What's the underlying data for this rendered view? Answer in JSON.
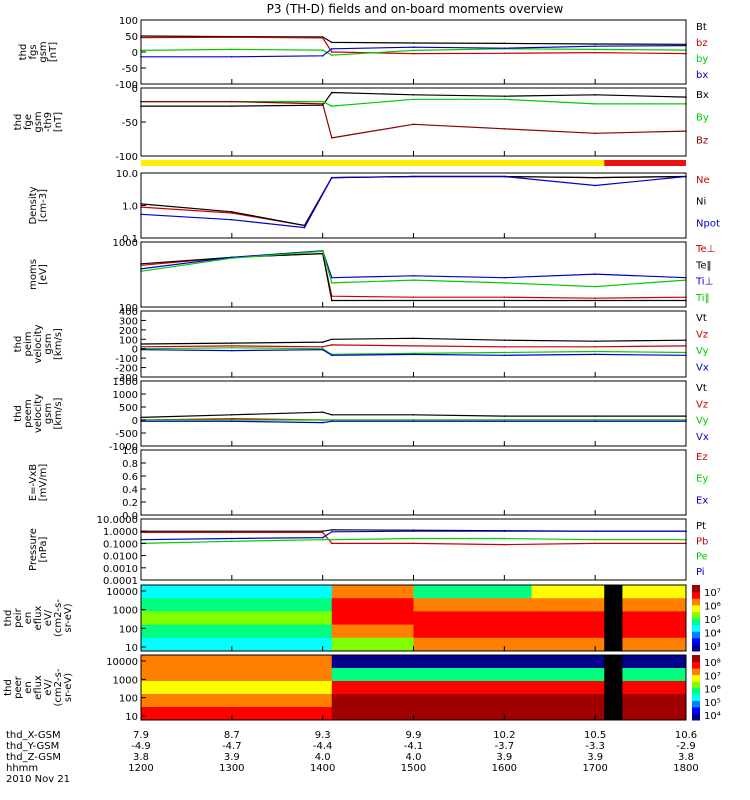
{
  "title": "P3 (TH-D) fields and on-board moments overview",
  "chart_data": [
    {
      "type": "line",
      "ylabel": [
        "thd",
        "fgs",
        "gsm",
        "[nT]"
      ],
      "yticks": [
        100,
        50,
        0,
        -50,
        -100
      ],
      "ylim": [
        -100,
        100
      ],
      "legend": [
        {
          "name": "Bt",
          "color": "#000000"
        },
        {
          "name": "bz",
          "color": "#cc0000"
        },
        {
          "name": "by",
          "color": "#00cc00"
        },
        {
          "name": "bx",
          "color": "#0000cc"
        }
      ],
      "series": [
        {
          "name": "Bt",
          "x": [
            12.0,
            13.0,
            14.0,
            14.1,
            15.0,
            16.0,
            17.0,
            18.0
          ],
          "values": [
            50,
            48,
            47,
            30,
            28,
            27,
            25,
            24
          ]
        },
        {
          "name": "bz",
          "x": [
            12.0,
            13.0,
            14.0,
            14.1,
            15.0,
            16.0,
            17.0,
            18.0
          ],
          "values": [
            45,
            46,
            44,
            0,
            -5,
            -4,
            -2,
            -5
          ]
        },
        {
          "name": "by",
          "x": [
            12.0,
            13.0,
            14.0,
            14.1,
            15.0,
            16.0,
            17.0,
            18.0
          ],
          "values": [
            5,
            8,
            6,
            -10,
            5,
            10,
            8,
            6
          ]
        },
        {
          "name": "bx",
          "x": [
            12.0,
            13.0,
            14.0,
            14.1,
            15.0,
            16.0,
            17.0,
            18.0
          ],
          "values": [
            -15,
            -15,
            -12,
            10,
            15,
            12,
            18,
            20
          ]
        }
      ]
    },
    {
      "type": "line",
      "ylabel": [
        "thd",
        "fge",
        "gsm",
        "-th9",
        "[nT]"
      ],
      "yticks": [
        0,
        -50,
        -100
      ],
      "ylim": [
        -120,
        30
      ],
      "legend": [
        {
          "name": "Bx",
          "color": "#000000"
        },
        {
          "name": "By",
          "color": "#00cc00"
        },
        {
          "name": "Bz",
          "color": "#8b0000"
        }
      ],
      "series": [
        {
          "name": "Bx",
          "x": [
            12.0,
            13.0,
            14.0,
            14.1,
            15.0,
            16.0,
            17.0,
            18.0
          ],
          "values": [
            -10,
            -10,
            -8,
            20,
            15,
            12,
            15,
            10
          ]
        },
        {
          "name": "By",
          "x": [
            12.0,
            13.0,
            14.0,
            14.1,
            15.0,
            16.0,
            17.0,
            18.0
          ],
          "values": [
            0,
            0,
            0,
            -10,
            5,
            5,
            -5,
            -5
          ]
        },
        {
          "name": "Bz",
          "x": [
            12.0,
            13.0,
            14.0,
            14.1,
            15.0,
            16.0,
            17.0,
            18.0
          ],
          "values": [
            0,
            0,
            -5,
            -80,
            -50,
            -60,
            -70,
            -65
          ]
        }
      ]
    },
    {
      "type": "line",
      "ylabel": [
        "Density",
        "[cm-3]"
      ],
      "yticks": [
        "10.0",
        "1.0",
        "0.1"
      ],
      "ylim": [
        0.1,
        30
      ],
      "yscale": "log",
      "legend": [
        {
          "name": "Ne",
          "color": "#cc0000"
        },
        {
          "name": "Ni",
          "color": "#000000"
        },
        {
          "name": "Npot",
          "color": "#0000cc"
        }
      ],
      "series": [
        {
          "name": "Ne",
          "x": [
            12.0,
            13.0,
            13.8,
            14.1,
            15.0,
            16.0,
            17.0,
            18.0
          ],
          "values": [
            1.5,
            0.9,
            0.3,
            20,
            22,
            22,
            20,
            22
          ]
        },
        {
          "name": "Ni",
          "x": [
            12.0,
            13.0,
            13.8,
            14.1,
            15.0,
            16.0,
            17.0,
            18.0
          ],
          "values": [
            2.0,
            1.0,
            0.3,
            20,
            22,
            22,
            20,
            22
          ]
        },
        {
          "name": "Npot",
          "x": [
            12.0,
            13.0,
            13.8,
            14.1,
            15.0,
            16.0,
            17.0,
            18.0
          ],
          "values": [
            0.8,
            0.5,
            0.25,
            20,
            22,
            22,
            10,
            22
          ]
        }
      ]
    },
    {
      "type": "line",
      "ylabel": [
        "moms",
        "[eV]"
      ],
      "yticks": [
        1000,
        100
      ],
      "ylim": [
        30,
        5000
      ],
      "yscale": "log",
      "legend": [
        {
          "name": "Te⊥",
          "color": "#cc0000"
        },
        {
          "name": "Te‖",
          "color": "#000000"
        },
        {
          "name": "Ti⊥",
          "color": "#0000cc"
        },
        {
          "name": "Ti‖",
          "color": "#00cc00"
        }
      ],
      "series": [
        {
          "name": "Te⊥",
          "x": [
            12.0,
            13.0,
            14.0,
            14.1,
            15.0,
            16.0,
            17.0,
            18.0
          ],
          "values": [
            800,
            1500,
            2000,
            70,
            65,
            65,
            60,
            65
          ]
        },
        {
          "name": "Te‖",
          "x": [
            12.0,
            13.0,
            14.0,
            14.1,
            15.0,
            16.0,
            17.0,
            18.0
          ],
          "values": [
            900,
            1500,
            2000,
            50,
            50,
            50,
            50,
            50
          ]
        },
        {
          "name": "Ti⊥",
          "x": [
            12.0,
            13.0,
            14.0,
            14.1,
            15.0,
            16.0,
            17.0,
            18.0
          ],
          "values": [
            600,
            1500,
            2500,
            300,
            350,
            300,
            400,
            300
          ]
        },
        {
          "name": "Ti‖",
          "x": [
            12.0,
            13.0,
            14.0,
            14.1,
            15.0,
            16.0,
            17.0,
            18.0
          ],
          "values": [
            500,
            1400,
            2400,
            200,
            250,
            200,
            150,
            250
          ]
        }
      ]
    },
    {
      "type": "line",
      "ylabel": [
        "thd",
        "peim",
        "velocity",
        "gsm",
        "[km/s]"
      ],
      "yticks": [
        400,
        300,
        200,
        100,
        0,
        -100,
        -200,
        -300
      ],
      "ylim": [
        -300,
        400
      ],
      "legend": [
        {
          "name": "Vt",
          "color": "#000000"
        },
        {
          "name": "Vz",
          "color": "#cc0000"
        },
        {
          "name": "Vy",
          "color": "#00cc00"
        },
        {
          "name": "Vx",
          "color": "#0000cc"
        }
      ],
      "series": [
        {
          "name": "Vt",
          "x": [
            12.0,
            13.0,
            14.0,
            14.1,
            15.0,
            16.0,
            17.0,
            18.0
          ],
          "values": [
            50,
            60,
            70,
            100,
            110,
            90,
            80,
            90
          ]
        },
        {
          "name": "Vz",
          "x": [
            12.0,
            13.0,
            14.0,
            14.1,
            15.0,
            16.0,
            17.0,
            18.0
          ],
          "values": [
            20,
            30,
            20,
            40,
            30,
            20,
            20,
            30
          ]
        },
        {
          "name": "Vy",
          "x": [
            12.0,
            13.0,
            14.0,
            14.1,
            15.0,
            16.0,
            17.0,
            18.0
          ],
          "values": [
            0,
            10,
            0,
            -60,
            -50,
            -40,
            -30,
            -40
          ]
        },
        {
          "name": "Vx",
          "x": [
            12.0,
            13.0,
            14.0,
            14.1,
            15.0,
            16.0,
            17.0,
            18.0
          ],
          "values": [
            -10,
            -20,
            -10,
            -70,
            -60,
            -70,
            -60,
            -70
          ]
        }
      ]
    },
    {
      "type": "line",
      "ylabel": [
        "thd",
        "peem",
        "velocity",
        "gsm",
        "[km/s]"
      ],
      "yticks": [
        1500,
        1000,
        500,
        0,
        -500,
        -1000
      ],
      "ylim": [
        -1000,
        1500
      ],
      "legend": [
        {
          "name": "Vt",
          "color": "#000000"
        },
        {
          "name": "Vz",
          "color": "#cc0000"
        },
        {
          "name": "Vy",
          "color": "#00cc00"
        },
        {
          "name": "Vx",
          "color": "#0000cc"
        }
      ],
      "series": [
        {
          "name": "Vt",
          "x": [
            12.0,
            13.0,
            14.0,
            14.1,
            15.0,
            16.0,
            17.0,
            18.0
          ],
          "values": [
            100,
            200,
            300,
            200,
            200,
            150,
            150,
            150
          ]
        },
        {
          "name": "Vz",
          "x": [
            12.0,
            13.0,
            14.0,
            14.1,
            15.0,
            16.0,
            17.0,
            18.0
          ],
          "values": [
            0,
            50,
            0,
            0,
            0,
            0,
            0,
            0
          ]
        },
        {
          "name": "Vy",
          "x": [
            12.0,
            13.0,
            14.0,
            14.1,
            15.0,
            16.0,
            17.0,
            18.0
          ],
          "values": [
            0,
            0,
            0,
            0,
            0,
            0,
            0,
            0
          ]
        },
        {
          "name": "Vx",
          "x": [
            12.0,
            13.0,
            14.0,
            14.1,
            15.0,
            16.0,
            17.0,
            18.0
          ],
          "values": [
            -50,
            -50,
            -100,
            -50,
            -50,
            -50,
            -50,
            -50
          ]
        }
      ]
    },
    {
      "type": "line",
      "ylabel": [
        "E=-VxB",
        "[mV/m]"
      ],
      "yticks": [
        "1.0",
        "0.8",
        "0.6",
        "0.4",
        "0.2",
        "0.0"
      ],
      "ylim": [
        0,
        1
      ],
      "legend": [
        {
          "name": "Ez",
          "color": "#cc0000"
        },
        {
          "name": "Ey",
          "color": "#00cc00"
        },
        {
          "name": "Ex",
          "color": "#0000cc"
        }
      ],
      "series": []
    },
    {
      "type": "line",
      "ylabel": [
        "Pressure",
        "[nPa]"
      ],
      "yticks": [
        "10.0000",
        "1.0000",
        "0.1000",
        "0.0100",
        "0.0010",
        "0.0001"
      ],
      "ylim": [
        0.0001,
        10
      ],
      "yscale": "log",
      "legend": [
        {
          "name": "Pt",
          "color": "#000000"
        },
        {
          "name": "Pb",
          "color": "#cc0000"
        },
        {
          "name": "Pe",
          "color": "#00cc00"
        },
        {
          "name": "Pi",
          "color": "#0000cc"
        }
      ],
      "series": [
        {
          "name": "Pt",
          "x": [
            12.0,
            13.0,
            14.0,
            14.1,
            15.0,
            16.0,
            17.0,
            18.0
          ],
          "values": [
            1.0,
            1.0,
            1.0,
            1.3,
            1.2,
            1.1,
            1.0,
            1.0
          ]
        },
        {
          "name": "Pb",
          "x": [
            12.0,
            13.0,
            14.0,
            14.1,
            15.0,
            16.0,
            17.0,
            18.0
          ],
          "values": [
            0.8,
            0.8,
            0.8,
            0.1,
            0.1,
            0.08,
            0.1,
            0.1
          ]
        },
        {
          "name": "Pe",
          "x": [
            12.0,
            13.0,
            14.0,
            14.1,
            15.0,
            16.0,
            17.0,
            18.0
          ],
          "values": [
            0.1,
            0.15,
            0.2,
            0.2,
            0.25,
            0.25,
            0.2,
            0.2
          ]
        },
        {
          "name": "Pi",
          "x": [
            12.0,
            13.0,
            14.0,
            14.1,
            15.0,
            16.0,
            17.0,
            18.0
          ],
          "values": [
            0.2,
            0.25,
            0.3,
            0.9,
            1.0,
            1.0,
            1.0,
            1.0
          ]
        }
      ]
    },
    {
      "type": "heatmap",
      "ylabel": [
        "thd",
        "peir",
        "en",
        "eflux",
        "eV/",
        "(cm2-s-",
        "sr-eV)"
      ],
      "yticks": [
        10000,
        1000,
        100,
        10
      ],
      "yscale": "log",
      "colorbar_ticks": [
        "10⁷",
        "10⁶",
        "10⁵",
        "10⁴",
        "10³"
      ]
    },
    {
      "type": "heatmap",
      "ylabel": [
        "thd",
        "peer",
        "en",
        "eflux",
        "eV/",
        "(cm2-s-",
        "sr-eV)"
      ],
      "yticks": [
        10000,
        1000,
        100,
        10
      ],
      "yscale": "log",
      "colorbar_ticks": [
        "10⁸",
        "10⁷",
        "10⁶",
        "10⁵",
        "10⁴"
      ]
    }
  ],
  "x_axis": {
    "rows": [
      {
        "label": "thd_X-GSM",
        "values": [
          "7.9",
          "8.7",
          "9.3",
          "9.9",
          "10.2",
          "10.5",
          "10.6"
        ]
      },
      {
        "label": "thd_Y-GSM",
        "values": [
          "-4.9",
          "-4.7",
          "-4.4",
          "-4.1",
          "-3.7",
          "-3.3",
          "-2.9"
        ]
      },
      {
        "label": "thd_Z-GSM",
        "values": [
          "3.8",
          "3.9",
          "4.0",
          "4.0",
          "3.9",
          "3.9",
          "3.8"
        ]
      },
      {
        "label": "hhmm",
        "values": [
          "1200",
          "1300",
          "1400",
          "1500",
          "1600",
          "1700",
          "1800"
        ]
      }
    ],
    "date": "2010 Nov 21",
    "xlim": [
      12.0,
      18.0
    ]
  }
}
